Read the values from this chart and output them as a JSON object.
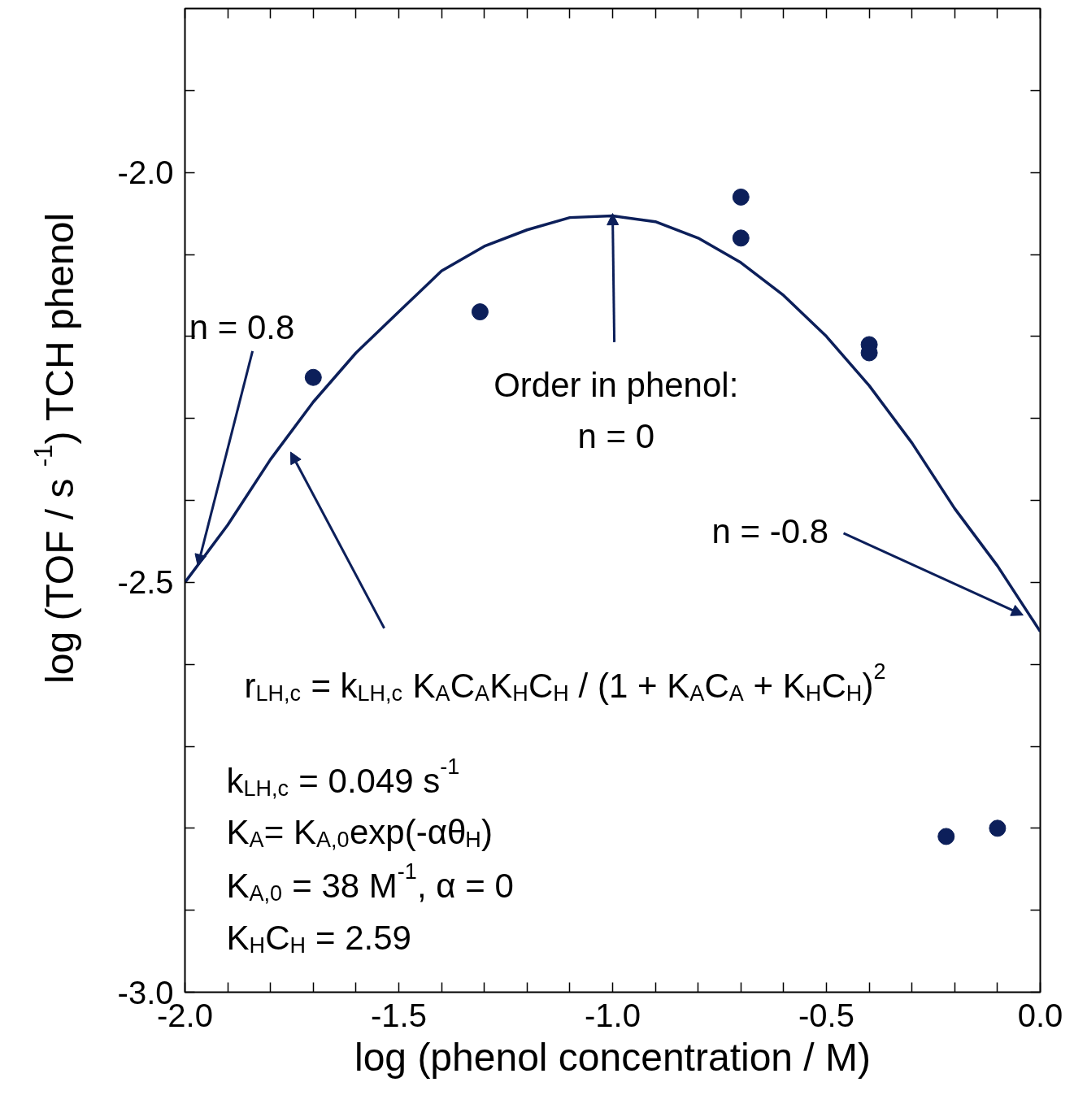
{
  "chart_data": {
    "type": "scatter",
    "xlabel": "log (phenol concentration / M)",
    "ylabel": "log (TOF  / s$^{-1}$) TCH phenol",
    "xlim": [
      -2.0,
      0.0
    ],
    "ylim": [
      -3.0,
      -1.8
    ],
    "xticks": [
      {
        "value": -2.0,
        "label": "-2.0"
      },
      {
        "value": -1.9,
        "label": null
      },
      {
        "value": -1.8,
        "label": null
      },
      {
        "value": -1.7,
        "label": null
      },
      {
        "value": -1.6,
        "label": null
      },
      {
        "value": -1.5,
        "label": "-1.5"
      },
      {
        "value": -1.4,
        "label": null
      },
      {
        "value": -1.3,
        "label": null
      },
      {
        "value": -1.2,
        "label": null
      },
      {
        "value": -1.1,
        "label": null
      },
      {
        "value": -1.0,
        "label": "-1.0"
      },
      {
        "value": -0.9,
        "label": null
      },
      {
        "value": -0.8,
        "label": null
      },
      {
        "value": -0.7,
        "label": null
      },
      {
        "value": -0.6,
        "label": null
      },
      {
        "value": -0.5,
        "label": "-0.5"
      },
      {
        "value": -0.4,
        "label": null
      },
      {
        "value": -0.3,
        "label": null
      },
      {
        "value": -0.2,
        "label": null
      },
      {
        "value": -0.1,
        "label": null
      },
      {
        "value": 0.0,
        "label": "0.0"
      }
    ],
    "yticks": [
      {
        "value": -3.0,
        "label": "-3.0"
      },
      {
        "value": -2.9,
        "label": null
      },
      {
        "value": -2.8,
        "label": null
      },
      {
        "value": -2.7,
        "label": null
      },
      {
        "value": -2.6,
        "label": null
      },
      {
        "value": -2.5,
        "label": "-2.5"
      },
      {
        "value": -2.4,
        "label": null
      },
      {
        "value": -2.3,
        "label": null
      },
      {
        "value": -2.2,
        "label": null
      },
      {
        "value": -2.1,
        "label": null
      },
      {
        "value": -2.0,
        "label": "-2.0"
      },
      {
        "value": -1.9,
        "label": null
      }
    ],
    "series": [
      {
        "type": "scatter",
        "color": "#0c1f5a",
        "marker": "circle",
        "x": [
          -1.7,
          -1.31,
          -0.7,
          -0.7,
          -0.4,
          -0.4,
          -0.22,
          -0.1
        ],
        "values": [
          -2.25,
          -2.17,
          -2.03,
          -2.08,
          -2.21,
          -2.22,
          -2.81,
          -2.8
        ]
      },
      {
        "type": "line",
        "color": "#0c1f5a",
        "x": [
          -2.0,
          -1.9,
          -1.8,
          -1.7,
          -1.6,
          -1.5,
          -1.4,
          -1.3,
          -1.2,
          -1.1,
          -1.0,
          -0.9,
          -0.8,
          -0.7,
          -0.6,
          -0.5,
          -0.4,
          -0.3,
          -0.2,
          -0.1,
          0.0
        ],
        "values": [
          -2.5,
          -2.43,
          -2.35,
          -2.28,
          -2.22,
          -2.17,
          -2.12,
          -2.09,
          -2.07,
          -2.055,
          -2.053,
          -2.06,
          -2.08,
          -2.11,
          -2.15,
          -2.2,
          -2.26,
          -2.33,
          -2.41,
          -2.48,
          -2.56
        ]
      }
    ],
    "annotations": [
      {
        "text": "n = 0.8",
        "x": -1.97,
        "y": -2.48
      },
      {
        "text": "Order in phenol:\nn = 0",
        "x": -1.0,
        "y": -2.05
      },
      {
        "text": "n = -0.8",
        "x": -0.04,
        "y": -2.54
      },
      "r$_{LH,c}$ = k$_{LH,c}$ K$_{A}$C$_{A}$K$_{H}$C$_{H}$ / (1 + K$_{A}$C$_{A}$ + K$_{H}$C$_{H}$)$^{2}$",
      "k$_{LH,c}$ = 0.049 s$^{-1}$",
      "K$_{A}$= K$_{A,0}$exp(-αθ$_{H}$)",
      "K$_{A,0}$ = 38 M$^{-1}$, α = 0",
      "K$_{H}$C$_{H}$ = 2.59"
    ]
  }
}
